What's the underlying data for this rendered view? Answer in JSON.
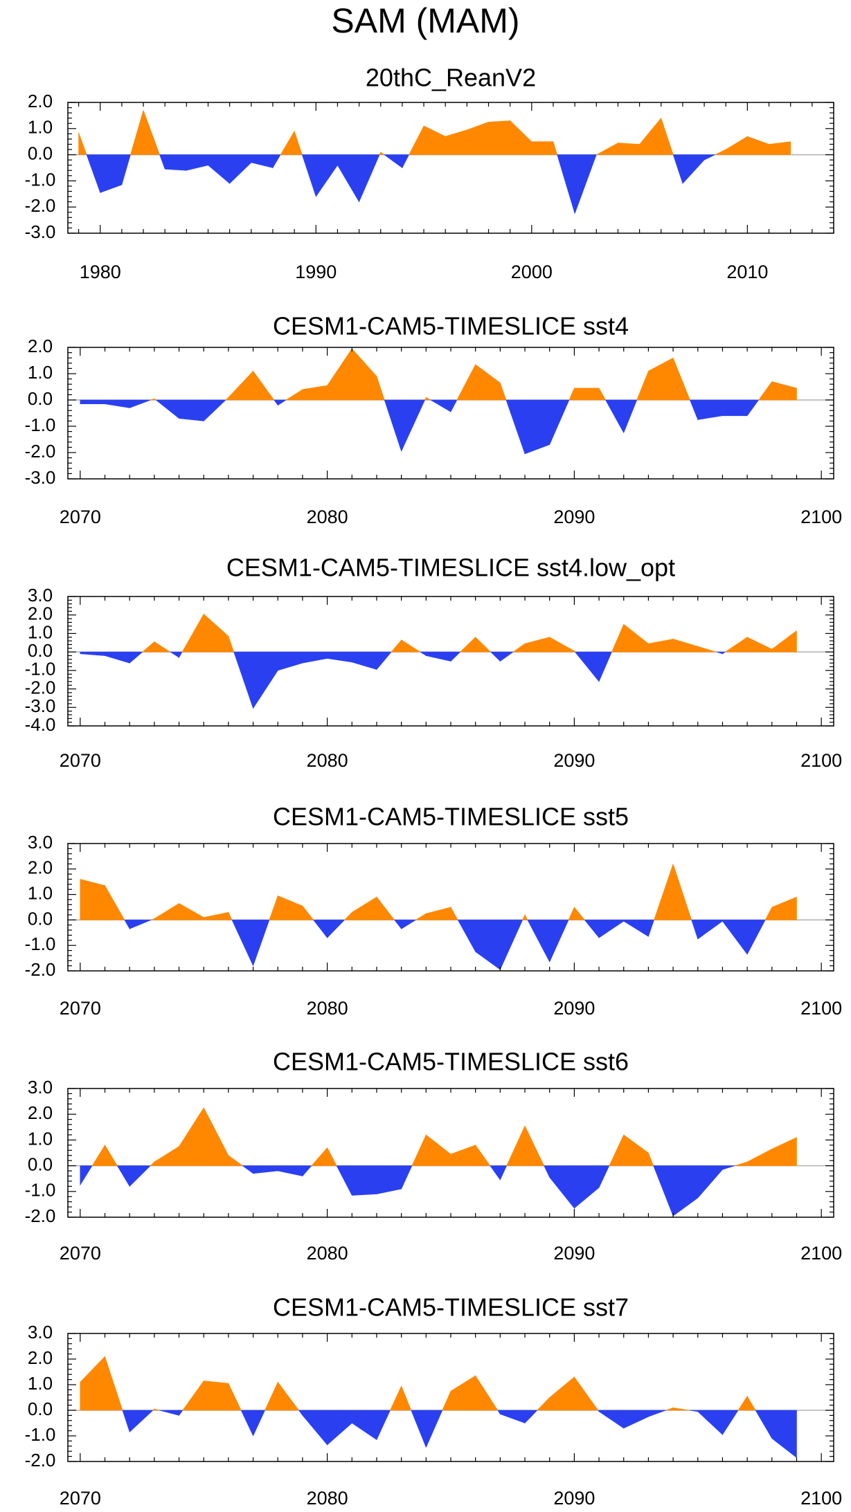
{
  "figure_title": "SAM (MAM)",
  "colors": {
    "positive": "#ff8800",
    "negative": "#2a40f0",
    "axis": "#000000",
    "zero_line": "#b0b0b0"
  },
  "chart_data": [
    {
      "type": "area",
      "title": "20thC_ReanV2",
      "xlabel": "",
      "ylabel": "",
      "x": [
        1979,
        1980,
        1981,
        1982,
        1983,
        1984,
        1985,
        1986,
        1987,
        1988,
        1989,
        1990,
        1991,
        1992,
        1993,
        1994,
        1995,
        1996,
        1997,
        1998,
        1999,
        2000,
        2001,
        2002,
        2003,
        2004,
        2005,
        2006,
        2007,
        2008,
        2009,
        2010,
        2011,
        2012
      ],
      "values": [
        0.85,
        -1.45,
        -1.15,
        1.7,
        -0.55,
        -0.6,
        -0.4,
        -1.1,
        -0.3,
        -0.5,
        0.9,
        -1.6,
        -0.4,
        -1.8,
        0.1,
        -0.5,
        1.1,
        0.7,
        0.95,
        1.25,
        1.3,
        0.5,
        0.5,
        -2.25,
        0.0,
        0.45,
        0.4,
        1.4,
        -1.1,
        -0.2,
        0.2,
        0.7,
        0.4,
        0.5
      ],
      "xlim": [
        1978.5,
        2014
      ],
      "ylim": [
        -3,
        2
      ],
      "xticks": [
        "1980",
        "1990",
        "2000",
        "2010"
      ],
      "yticks": [
        "2.0",
        "1.0",
        "0.0",
        "-1.0",
        "-2.0",
        "-3.0"
      ]
    },
    {
      "type": "area",
      "title": "CESM1-CAM5-TIMESLICE sst4",
      "xlabel": "",
      "ylabel": "",
      "x": [
        2070,
        2071,
        2072,
        2073,
        2074,
        2075,
        2076,
        2077,
        2078,
        2079,
        2080,
        2081,
        2082,
        2083,
        2084,
        2085,
        2086,
        2087,
        2088,
        2089,
        2090,
        2091,
        2092,
        2093,
        2094,
        2095,
        2096,
        2097,
        2098,
        2099
      ],
      "values": [
        -0.15,
        -0.15,
        -0.3,
        0.05,
        -0.7,
        -0.8,
        0.1,
        1.1,
        -0.2,
        0.4,
        0.55,
        1.95,
        0.9,
        -1.95,
        0.1,
        -0.45,
        1.35,
        0.65,
        -2.05,
        -1.7,
        0.45,
        0.45,
        -1.25,
        1.1,
        1.6,
        -0.75,
        -0.6,
        -0.6,
        0.7,
        0.45
      ],
      "xlim": [
        2069.5,
        2100.5
      ],
      "ylim": [
        -3,
        2
      ],
      "xticks": [
        "2070",
        "2080",
        "2090",
        "2100"
      ],
      "yticks": [
        "2.0",
        "1.0",
        "0.0",
        "-1.0",
        "-2.0",
        "-3.0"
      ]
    },
    {
      "type": "area",
      "title": "CESM1-CAM5-TIMESLICE sst4.low_opt",
      "xlabel": "",
      "ylabel": "",
      "x": [
        2070,
        2071,
        2072,
        2073,
        2074,
        2075,
        2076,
        2077,
        2078,
        2079,
        2080,
        2081,
        2082,
        2083,
        2084,
        2085,
        2086,
        2087,
        2088,
        2089,
        2090,
        2091,
        2092,
        2093,
        2094,
        2095,
        2096,
        2097,
        2098,
        2099
      ],
      "values": [
        -0.1,
        -0.2,
        -0.6,
        0.55,
        -0.3,
        2.05,
        0.85,
        -3.05,
        -1.0,
        -0.6,
        -0.35,
        -0.55,
        -0.95,
        0.65,
        -0.2,
        -0.5,
        0.8,
        -0.5,
        0.45,
        0.8,
        0.05,
        -1.6,
        1.5,
        0.45,
        0.7,
        0.3,
        -0.1,
        0.8,
        0.15,
        1.15
      ],
      "xlim": [
        2069.5,
        2100.5
      ],
      "ylim": [
        -4,
        3
      ],
      "xticks": [
        "2070",
        "2080",
        "2090",
        "2100"
      ],
      "yticks": [
        "3.0",
        "2.0",
        "1.0",
        "0.0",
        "-1.0",
        "-2.0",
        "-3.0",
        "-4.0"
      ]
    },
    {
      "type": "area",
      "title": "CESM1-CAM5-TIMESLICE sst5",
      "xlabel": "",
      "ylabel": "",
      "x": [
        2070,
        2071,
        2072,
        2073,
        2074,
        2075,
        2076,
        2077,
        2078,
        2079,
        2080,
        2081,
        2082,
        2083,
        2084,
        2085,
        2086,
        2087,
        2088,
        2089,
        2090,
        2091,
        2092,
        2093,
        2094,
        2095,
        2096,
        2097,
        2098,
        2099
      ],
      "values": [
        1.6,
        1.35,
        -0.35,
        0.05,
        0.65,
        0.1,
        0.3,
        -1.8,
        0.95,
        0.55,
        -0.7,
        0.3,
        0.9,
        -0.35,
        0.25,
        0.5,
        -1.25,
        -1.95,
        0.2,
        -1.65,
        0.5,
        -0.7,
        -0.05,
        -0.65,
        2.2,
        -0.75,
        -0.05,
        -1.35,
        0.5,
        0.9
      ],
      "xlim": [
        2069.5,
        2100.5
      ],
      "ylim": [
        -2,
        3
      ],
      "xticks": [
        "2070",
        "2080",
        "2090",
        "2100"
      ],
      "yticks": [
        "3.0",
        "2.0",
        "1.0",
        "0.0",
        "-1.0",
        "-2.0"
      ]
    },
    {
      "type": "area",
      "title": "CESM1-CAM5-TIMESLICE sst6",
      "xlabel": "",
      "ylabel": "",
      "x": [
        2070,
        2071,
        2072,
        2073,
        2074,
        2075,
        2076,
        2077,
        2078,
        2079,
        2080,
        2081,
        2082,
        2083,
        2084,
        2085,
        2086,
        2087,
        2088,
        2089,
        2090,
        2091,
        2092,
        2093,
        2094,
        2095,
        2096,
        2097,
        2098,
        2099
      ],
      "values": [
        -0.75,
        0.8,
        -0.8,
        0.15,
        0.75,
        2.25,
        0.4,
        -0.3,
        -0.2,
        -0.4,
        0.7,
        -1.15,
        -1.1,
        -0.9,
        1.2,
        0.45,
        0.8,
        -0.55,
        1.55,
        -0.45,
        -1.65,
        -0.85,
        1.2,
        0.5,
        -1.95,
        -1.25,
        -0.15,
        0.15,
        0.65,
        1.1
      ],
      "xlim": [
        2069.5,
        2100.5
      ],
      "ylim": [
        -2,
        3
      ],
      "xticks": [
        "2070",
        "2080",
        "2090",
        "2100"
      ],
      "yticks": [
        "3.0",
        "2.0",
        "1.0",
        "0.0",
        "-1.0",
        "-2.0"
      ]
    },
    {
      "type": "area",
      "title": "CESM1-CAM5-TIMESLICE sst7",
      "xlabel": "",
      "ylabel": "",
      "x": [
        2070,
        2071,
        2072,
        2073,
        2074,
        2075,
        2076,
        2077,
        2078,
        2079,
        2080,
        2081,
        2082,
        2083,
        2084,
        2085,
        2086,
        2087,
        2088,
        2089,
        2090,
        2091,
        2092,
        2093,
        2094,
        2095,
        2096,
        2097,
        2098,
        2099
      ],
      "values": [
        1.1,
        2.1,
        -0.85,
        0.05,
        -0.2,
        1.15,
        1.05,
        -1.0,
        1.1,
        -0.2,
        -1.35,
        -0.5,
        -1.15,
        0.95,
        -1.45,
        0.75,
        1.35,
        -0.15,
        -0.5,
        0.5,
        1.3,
        -0.05,
        -0.7,
        -0.25,
        0.1,
        -0.05,
        -0.95,
        0.55,
        -1.1,
        -1.85
      ],
      "xlim": [
        2069.5,
        2100.5
      ],
      "ylim": [
        -2,
        3
      ],
      "xticks": [
        "2070",
        "2080",
        "2090",
        "2100"
      ],
      "yticks": [
        "3.0",
        "2.0",
        "1.0",
        "0.0",
        "-1.0",
        "-2.0"
      ]
    }
  ]
}
